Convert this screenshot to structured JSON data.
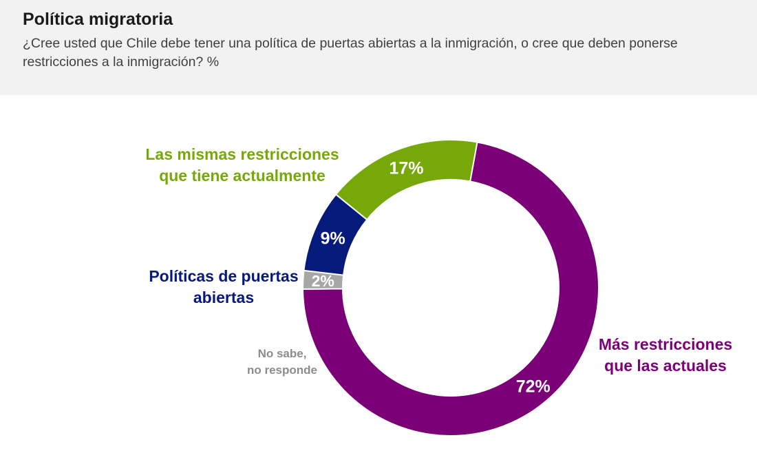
{
  "header": {
    "title": "Política migratoria",
    "subtitle": "¿Cree usted que Chile debe tener una política de puertas abiertas a la inmigración, o cree que deben ponerse restricciones a la inmigración? %"
  },
  "chart_data": {
    "type": "pie",
    "variant": "donut",
    "series": [
      {
        "name": "Más restricciones que las actuales",
        "label_lines": [
          "Más restricciones",
          "que las actuales"
        ],
        "value": 72,
        "value_label": "72%",
        "color": "#7b0078",
        "label_color": "#7b0078"
      },
      {
        "name": "No sabe, no responde",
        "label_lines": [
          "No sabe,",
          "no responde"
        ],
        "value": 2,
        "value_label": "2%",
        "color": "#a6a6a6",
        "label_color": "#8c8c8c"
      },
      {
        "name": "Políticas de puertas abiertas",
        "label_lines": [
          "Políticas de puertas",
          "abiertas"
        ],
        "value": 9,
        "value_label": "9%",
        "color": "#061a7c",
        "label_color": "#061a7c"
      },
      {
        "name": "Las mismas restricciones que tiene actualmente",
        "label_lines": [
          "Las mismas restricciones",
          "que tiene actualmente"
        ],
        "value": 17,
        "value_label": "17%",
        "color": "#77a80a",
        "label_color": "#77a80a"
      }
    ]
  }
}
